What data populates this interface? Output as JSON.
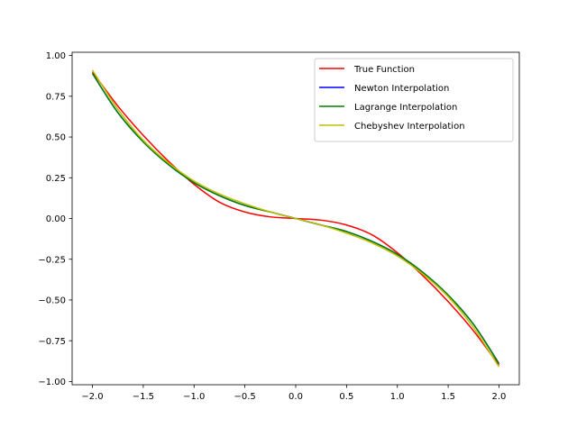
{
  "chart_data": {
    "type": "line",
    "title": "",
    "xlabel": "",
    "ylabel": "",
    "xlim": [
      -2.2,
      2.2
    ],
    "ylim": [
      -1.02,
      1.02
    ],
    "xticks": [
      -2.0,
      -1.5,
      -1.0,
      -0.5,
      0.0,
      0.5,
      1.0,
      1.5,
      2.0
    ],
    "xtick_labels": [
      "−2.0",
      "−1.5",
      "−1.0",
      "−0.5",
      "0.0",
      "0.5",
      "1.0",
      "1.5",
      "2.0"
    ],
    "yticks": [
      1.0,
      0.75,
      0.5,
      0.25,
      0.0,
      -0.25,
      -0.5,
      -0.75,
      -1.0
    ],
    "ytick_labels": [
      "1.00",
      "0.75",
      "0.50",
      "0.25",
      "0.00",
      "−0.25",
      "−0.50",
      "−0.75",
      "−1.00"
    ],
    "grid": false,
    "legend_position": "top-right",
    "series": [
      {
        "name": "True Function",
        "color": "#ff0000",
        "x": [
          -2.0,
          -1.75,
          -1.5,
          -1.25,
          -1.0,
          -0.75,
          -0.5,
          -0.25,
          0.0,
          0.25,
          0.5,
          0.75,
          1.0,
          1.25,
          1.5,
          1.75,
          2.0
        ],
        "y": [
          0.9,
          0.69,
          0.51,
          0.35,
          0.21,
          0.1,
          0.04,
          0.01,
          0.0,
          -0.01,
          -0.04,
          -0.1,
          -0.21,
          -0.35,
          -0.51,
          -0.69,
          -0.9
        ]
      },
      {
        "name": "Newton Interpolation",
        "color": "#0000ff",
        "x": [
          -2.0,
          -1.75,
          -1.5,
          -1.25,
          -1.0,
          -0.75,
          -0.5,
          -0.25,
          0.0,
          0.25,
          0.5,
          0.75,
          1.0,
          1.25,
          1.5,
          1.75,
          2.0
        ],
        "y": [
          0.89,
          0.65,
          0.47,
          0.33,
          0.22,
          0.14,
          0.08,
          0.04,
          0.0,
          -0.04,
          -0.08,
          -0.14,
          -0.22,
          -0.33,
          -0.47,
          -0.65,
          -0.89
        ]
      },
      {
        "name": "Lagrange Interpolation",
        "color": "#008000",
        "x": [
          -2.0,
          -1.75,
          -1.5,
          -1.25,
          -1.0,
          -0.75,
          -0.5,
          -0.25,
          0.0,
          0.25,
          0.5,
          0.75,
          1.0,
          1.25,
          1.5,
          1.75,
          2.0
        ],
        "y": [
          0.89,
          0.65,
          0.47,
          0.33,
          0.22,
          0.14,
          0.08,
          0.04,
          0.0,
          -0.04,
          -0.08,
          -0.14,
          -0.22,
          -0.33,
          -0.47,
          -0.65,
          -0.89
        ]
      },
      {
        "name": "Chebyshev Interpolation",
        "color": "#bfbf00",
        "x": [
          -2.0,
          -1.75,
          -1.5,
          -1.25,
          -1.0,
          -0.75,
          -0.5,
          -0.25,
          0.0,
          0.25,
          0.5,
          0.75,
          1.0,
          1.25,
          1.5,
          1.75,
          2.0
        ],
        "y": [
          0.91,
          0.67,
          0.48,
          0.34,
          0.23,
          0.15,
          0.09,
          0.04,
          0.0,
          -0.04,
          -0.09,
          -0.15,
          -0.23,
          -0.34,
          -0.48,
          -0.67,
          -0.91
        ]
      }
    ]
  }
}
